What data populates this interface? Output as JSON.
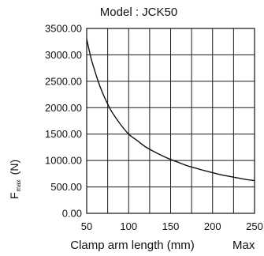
{
  "chart_data": {
    "type": "line",
    "title": "Model : JCK50",
    "xlabel": "Clamp arm length (mm)",
    "xlabel_extra": "Max",
    "ylabel_main": "F",
    "ylabel_sub": "max",
    "ylabel_unit": "(N)",
    "xlim": [
      50,
      250
    ],
    "ylim": [
      0,
      3500
    ],
    "grid": true,
    "x_ticks": [
      50,
      100,
      150,
      200,
      250
    ],
    "x_tick_labels": [
      "50",
      "100",
      "150",
      "200",
      "250"
    ],
    "y_ticks": [
      0,
      500,
      1000,
      1500,
      2000,
      2500,
      3000,
      3500
    ],
    "y_tick_labels": [
      "0.00",
      "500.00",
      "1000.00",
      "1500.00",
      "2000.00",
      "2500.00",
      "3000.00",
      "3500.00"
    ],
    "x_grid": [
      50,
      75,
      100,
      125,
      150,
      175,
      200,
      225,
      250
    ],
    "series": [
      {
        "color": "#111111",
        "x": [
          50,
          55,
          60,
          65,
          70,
          75,
          80,
          90,
          100,
          110,
          120,
          130,
          140,
          150,
          160,
          170,
          180,
          190,
          200,
          210,
          220,
          230,
          240,
          250
        ],
        "y": [
          3300,
          2950,
          2680,
          2440,
          2240,
          2070,
          1920,
          1690,
          1500,
          1380,
          1260,
          1170,
          1090,
          1020,
          960,
          900,
          855,
          810,
          770,
          730,
          700,
          670,
          640,
          620
        ]
      }
    ]
  }
}
